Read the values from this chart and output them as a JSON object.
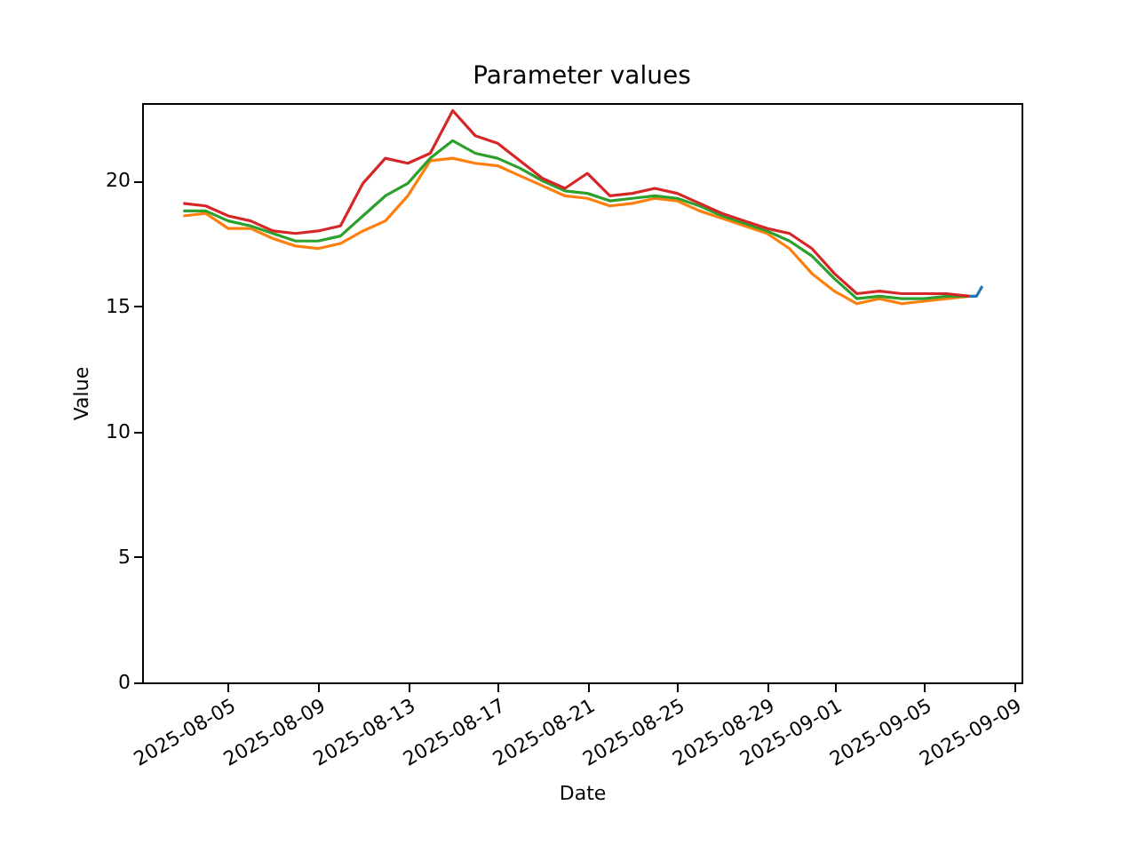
{
  "chart_data": {
    "type": "line",
    "title": "Parameter values",
    "xlabel": "Date",
    "ylabel": "Value",
    "xlim": [
      "2025-08-01T04:00",
      "2025-09-09T08:00"
    ],
    "xticks": [
      "2025-08-05",
      "2025-08-09",
      "2025-08-13",
      "2025-08-17",
      "2025-08-21",
      "2025-08-25",
      "2025-08-29",
      "2025-09-01",
      "2025-09-05",
      "2025-09-09"
    ],
    "ylim": [
      0,
      23.1
    ],
    "yticks": [
      0,
      5,
      10,
      15,
      20
    ],
    "grid": false,
    "legend": false,
    "line_style": "solid",
    "marker": "none",
    "x": [
      "2025-08-03",
      "2025-08-04",
      "2025-08-05",
      "2025-08-06",
      "2025-08-07",
      "2025-08-08",
      "2025-08-09",
      "2025-08-10",
      "2025-08-11",
      "2025-08-12",
      "2025-08-13",
      "2025-08-14",
      "2025-08-15",
      "2025-08-16",
      "2025-08-17",
      "2025-08-18",
      "2025-08-19",
      "2025-08-20",
      "2025-08-21",
      "2025-08-22",
      "2025-08-23",
      "2025-08-24",
      "2025-08-25",
      "2025-08-26",
      "2025-08-27",
      "2025-08-28",
      "2025-08-29",
      "2025-08-30",
      "2025-08-31",
      "2025-09-01",
      "2025-09-02",
      "2025-09-03",
      "2025-09-04",
      "2025-09-05",
      "2025-09-06",
      "2025-09-07"
    ],
    "series": [
      {
        "color": "#1f77b4",
        "x": [
          "2025-09-07T00:00",
          "2025-09-07T08:00",
          "2025-09-07T14:00"
        ],
        "values": [
          15.4,
          15.4,
          15.8
        ]
      },
      {
        "color": "#ff7f0e",
        "values": [
          18.6,
          18.7,
          18.1,
          18.1,
          17.7,
          17.4,
          17.3,
          17.5,
          18.0,
          18.4,
          19.4,
          20.8,
          20.9,
          20.7,
          20.6,
          20.2,
          19.8,
          19.4,
          19.3,
          19.0,
          19.1,
          19.3,
          19.2,
          18.8,
          18.5,
          18.2,
          17.9,
          17.3,
          16.3,
          15.6,
          15.1,
          15.3,
          15.1,
          15.2,
          15.3,
          15.4
        ]
      },
      {
        "color": "#2ca02c",
        "values": [
          18.8,
          18.8,
          18.4,
          18.2,
          17.9,
          17.6,
          17.6,
          17.8,
          18.6,
          19.4,
          19.9,
          20.9,
          21.6,
          21.1,
          20.9,
          20.5,
          20.0,
          19.6,
          19.5,
          19.2,
          19.3,
          19.4,
          19.3,
          19.0,
          18.6,
          18.3,
          18.0,
          17.6,
          17.0,
          16.1,
          15.3,
          15.4,
          15.3,
          15.3,
          15.4,
          15.4
        ]
      },
      {
        "color": "#d62728",
        "values": [
          19.1,
          19.0,
          18.6,
          18.4,
          18.0,
          17.9,
          18.0,
          18.2,
          19.9,
          20.9,
          20.7,
          21.1,
          22.8,
          21.8,
          21.5,
          20.8,
          20.1,
          19.7,
          20.3,
          19.4,
          19.5,
          19.7,
          19.5,
          19.1,
          18.7,
          18.4,
          18.1,
          17.9,
          17.3,
          16.3,
          15.5,
          15.6,
          15.5,
          15.5,
          15.5,
          15.4
        ]
      }
    ]
  }
}
